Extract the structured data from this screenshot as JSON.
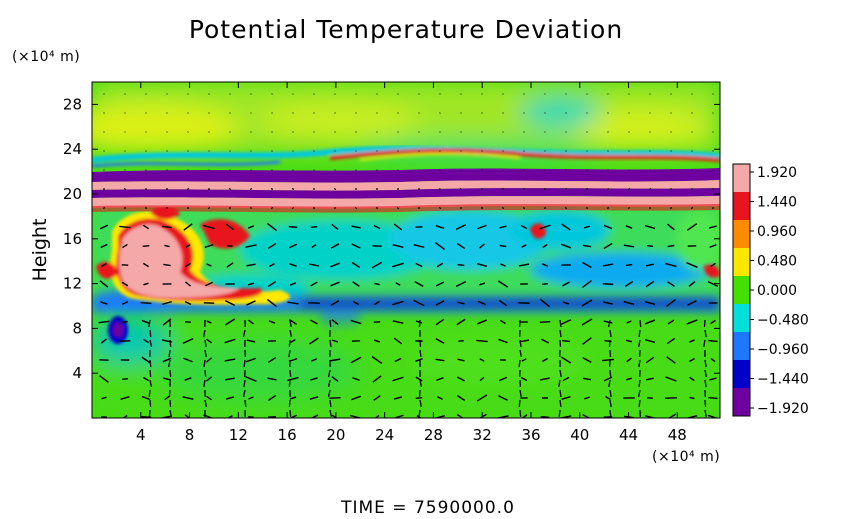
{
  "chart_data": {
    "type": "heatmap",
    "title": "Potential Temperature Deviation",
    "ylabel": "Height",
    "xlabel": "",
    "x_unit": "(×10⁴ m)",
    "y_unit": "(×10⁴ m)",
    "x_ticks": [
      4,
      8,
      12,
      16,
      20,
      24,
      28,
      32,
      36,
      40,
      44,
      48
    ],
    "y_ticks": [
      4,
      8,
      12,
      16,
      20,
      24,
      28
    ],
    "xlim": [
      0,
      51.5
    ],
    "ylim": [
      0,
      30
    ],
    "overlay": "wind-vectors",
    "colorbar": {
      "ticks": [
        "1.920",
        "1.440",
        "0.960",
        "0.480",
        "0.000",
        "−0.480",
        "−0.960",
        "−1.440",
        "−1.920"
      ],
      "range": [
        -1.92,
        1.92
      ],
      "colors": [
        "#f4a8a8",
        "#e8141e",
        "#ff8c00",
        "#ffe800",
        "#46e000",
        "#00e0d8",
        "#1e78ff",
        "#0000c8",
        "#6e00a0"
      ]
    },
    "bands": [
      {
        "name": "upper-band-pink",
        "y": [
          20.6,
          21.2
        ],
        "value": 1.92
      },
      {
        "name": "upper-band-purple",
        "y": [
          21.6,
          22.0
        ],
        "value": -1.92
      },
      {
        "name": "lower-band-purple",
        "y": [
          19.9,
          20.4
        ],
        "value": -1.92
      },
      {
        "name": "lower-band-pink",
        "y": [
          19.0,
          19.7
        ],
        "value": 1.92
      },
      {
        "name": "negative-layer",
        "y": [
          9.5,
          11.0
        ],
        "value": -1.2
      }
    ],
    "time_label": "TIME  =  7590000.0"
  }
}
